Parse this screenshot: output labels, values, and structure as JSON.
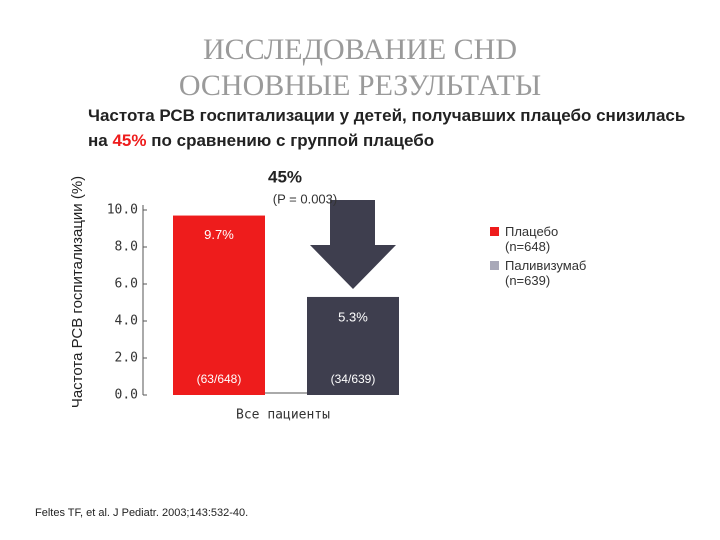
{
  "chart_data": {
    "type": "bar",
    "title": [
      "ИССЛЕДОВАНИЕ CHD",
      "ОСНОВНЫЕ РЕЗУЛЬТАТЫ"
    ],
    "subtitle": [
      "Частота РСВ госпитализации у детей, получавших плацебо снизилась на",
      "45%",
      "по сравнению с группой плацебо"
    ],
    "y_label": "Частота РСВ госпитализации (%)",
    "x_label": "Все пациенты",
    "annotation": "45%",
    "p_value": "(P = 0.003)",
    "source": "Feltes TF, et al. J Pediatr. 2003;143:532-40.",
    "ylim": [
      0,
      10
    ],
    "yticks": [
      {
        "value": 0,
        "label": "0.0"
      },
      {
        "value": 2,
        "label": "2.0"
      },
      {
        "value": 4,
        "label": "4.0"
      },
      {
        "value": 6,
        "label": "6.0"
      },
      {
        "value": 8,
        "label": "8.0"
      },
      {
        "value": 10,
        "label": "10.0"
      }
    ],
    "series": [
      {
        "name": "Плацебо (n=648)",
        "color": "#ee1c1c",
        "values": [
          9.7
        ],
        "value_labels": [
          "9.7%"
        ],
        "count_labels": [
          "(63/648)"
        ]
      },
      {
        "name": "Паливизумаб (n=639)",
        "color": "#3e3e4e",
        "legend_color": "#a8a8b8",
        "values": [
          5.3
        ],
        "value_labels": [
          "5.3%"
        ],
        "count_labels": [
          "(34/639)"
        ]
      }
    ]
  }
}
